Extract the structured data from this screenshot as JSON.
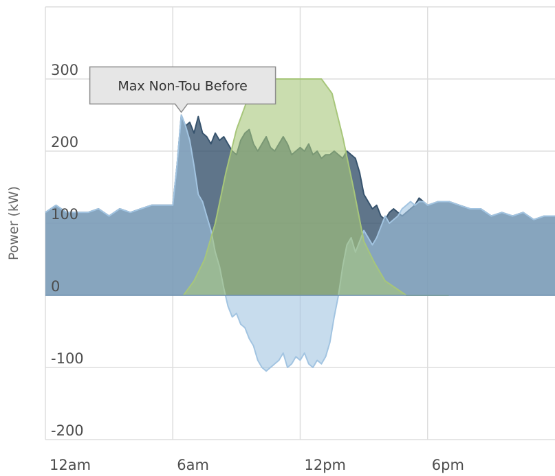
{
  "chart_data": {
    "type": "area",
    "ylabel": "Power (kW)",
    "ylim": [
      -200,
      400
    ],
    "xlim": [
      0,
      24
    ],
    "x_ticks": [
      {
        "value": 0,
        "label": "12am"
      },
      {
        "value": 6,
        "label": "6am"
      },
      {
        "value": 12,
        "label": "12pm"
      },
      {
        "value": 18,
        "label": "6pm"
      }
    ],
    "y_ticks": [
      {
        "value": -200,
        "label": "-200"
      },
      {
        "value": -100,
        "label": "-100"
      },
      {
        "value": 0,
        "label": "0"
      },
      {
        "value": 100,
        "label": "100"
      },
      {
        "value": 200,
        "label": "200"
      },
      {
        "value": 300,
        "label": "300"
      }
    ],
    "grid": true,
    "tooltip": {
      "text": "Max Non-Tou Before",
      "x": 6.4,
      "y": 252
    },
    "series": [
      {
        "color": "#37536d",
        "fill_opacity": 0.8,
        "x": [
          0,
          0.5,
          1,
          1.5,
          2,
          2.5,
          3,
          3.5,
          4,
          4.5,
          5,
          5.5,
          6,
          6.2,
          6.4,
          6.6,
          6.8,
          7,
          7.2,
          7.4,
          7.6,
          7.8,
          8,
          8.2,
          8.4,
          8.6,
          8.8,
          9,
          9.2,
          9.4,
          9.6,
          9.8,
          10,
          10.2,
          10.4,
          10.6,
          10.8,
          11,
          11.2,
          11.4,
          11.6,
          11.8,
          12,
          12.2,
          12.4,
          12.6,
          12.8,
          13,
          13.2,
          13.4,
          13.6,
          13.8,
          14,
          14.2,
          14.4,
          14.6,
          14.8,
          15,
          15.2,
          15.4,
          15.6,
          15.8,
          16,
          16.2,
          16.4,
          16.6,
          16.8,
          17,
          17.2,
          17.4,
          17.6,
          17.8,
          18,
          18.5,
          19,
          19.5,
          20,
          20.5,
          21,
          21.5,
          22,
          22.5,
          23,
          23.5,
          24
        ],
        "values": [
          115,
          125,
          115,
          115,
          115,
          120,
          110,
          120,
          115,
          120,
          125,
          125,
          125,
          180,
          250,
          235,
          240,
          225,
          248,
          225,
          220,
          210,
          225,
          215,
          220,
          210,
          200,
          195,
          215,
          225,
          230,
          210,
          200,
          210,
          220,
          205,
          200,
          210,
          220,
          210,
          195,
          200,
          205,
          200,
          210,
          195,
          200,
          190,
          195,
          195,
          200,
          195,
          190,
          200,
          195,
          190,
          170,
          140,
          130,
          120,
          125,
          110,
          105,
          115,
          120,
          115,
          110,
          115,
          120,
          125,
          135,
          130,
          125,
          130,
          130,
          125,
          120,
          120,
          110,
          115,
          110,
          115,
          105,
          110,
          110
        ],
        "markers": false
      },
      {
        "color": "#a2c4e1",
        "fill_opacity": 0.6,
        "x": [
          0,
          0.5,
          1,
          1.5,
          2,
          2.5,
          3,
          3.5,
          4,
          4.5,
          5,
          5.5,
          6,
          6.2,
          6.4,
          6.6,
          6.8,
          7,
          7.2,
          7.4,
          7.6,
          7.8,
          8,
          8.2,
          8.4,
          8.6,
          8.8,
          9,
          9.2,
          9.4,
          9.6,
          9.8,
          10,
          10.2,
          10.4,
          10.6,
          10.8,
          11,
          11.2,
          11.4,
          11.6,
          11.8,
          12,
          12.2,
          12.4,
          12.6,
          12.8,
          13,
          13.2,
          13.4,
          13.6,
          13.8,
          14,
          14.2,
          14.4,
          14.6,
          14.8,
          15,
          15.2,
          15.4,
          15.6,
          15.8,
          16,
          16.2,
          16.4,
          16.6,
          16.8,
          17,
          17.2,
          17.4,
          17.6,
          17.8,
          18,
          18.5,
          19,
          19.5,
          20,
          20.5,
          21,
          21.5,
          22,
          22.5,
          23,
          23.5,
          24
        ],
        "values": [
          115,
          125,
          115,
          115,
          115,
          120,
          110,
          120,
          115,
          120,
          125,
          125,
          125,
          180,
          250,
          235,
          215,
          180,
          140,
          130,
          110,
          90,
          60,
          40,
          10,
          -15,
          -30,
          -25,
          -40,
          -45,
          -60,
          -70,
          -90,
          -100,
          -105,
          -100,
          -95,
          -90,
          -80,
          -100,
          -95,
          -85,
          -90,
          -80,
          -95,
          -100,
          -90,
          -95,
          -85,
          -65,
          -30,
          0,
          40,
          70,
          80,
          60,
          75,
          90,
          80,
          70,
          80,
          95,
          110,
          100,
          105,
          110,
          120,
          125,
          130,
          125,
          130,
          130,
          125,
          130,
          130,
          125,
          120,
          120,
          110,
          115,
          110,
          115,
          105,
          110,
          110
        ],
        "markers": false
      },
      {
        "color": "#a7c67a",
        "fill_opacity": 0.6,
        "x": [
          6.5,
          7,
          7.5,
          8,
          8.5,
          9,
          9.5,
          10,
          10.5,
          11,
          11.5,
          12,
          12.5,
          13,
          13.5,
          14,
          14.5,
          15,
          15.5,
          16,
          16.5,
          17,
          17.5,
          18,
          19
        ],
        "values": [
          0,
          20,
          50,
          100,
          170,
          230,
          270,
          290,
          300,
          300,
          300,
          300,
          300,
          300,
          280,
          220,
          150,
          75,
          45,
          20,
          10,
          0,
          0,
          0,
          0
        ],
        "markers": false
      }
    ]
  }
}
